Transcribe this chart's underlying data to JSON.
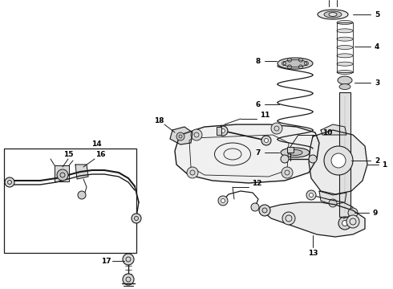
{
  "background_color": "#ffffff",
  "line_color": "#1a1a1a",
  "figsize": [
    4.9,
    3.6
  ],
  "dpi": 100,
  "xlim": [
    0,
    490
  ],
  "ylim": [
    360,
    0
  ]
}
